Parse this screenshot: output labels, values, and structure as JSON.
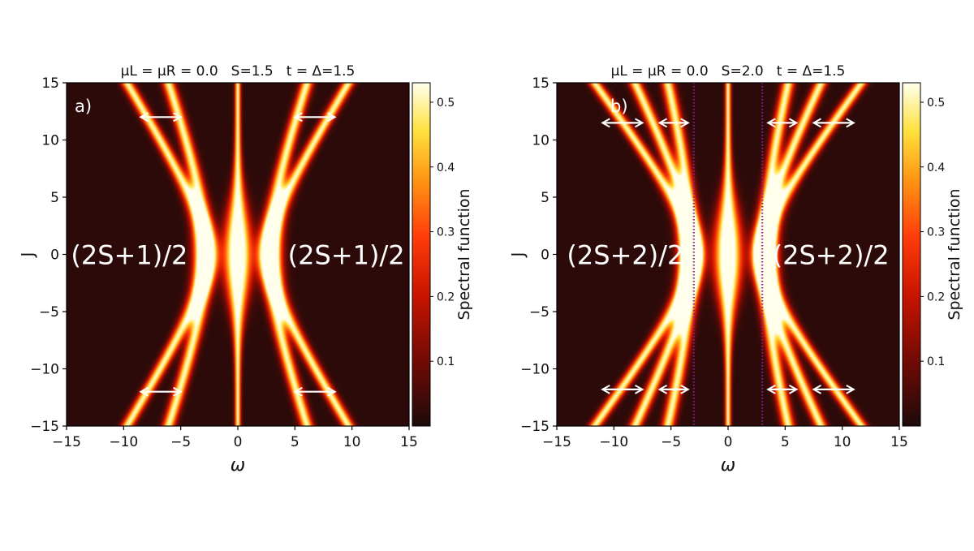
{
  "colors": {
    "background": "#ffffff",
    "heatmap_low": "#1e0a0a",
    "heatmap_high": "#ffffe8",
    "annotation": "#ffffff",
    "dotted_line": "#8a1f8f"
  },
  "colorbar": {
    "label": "Spectral function",
    "range": [
      0.0,
      0.53
    ],
    "ticks": [
      0.1,
      0.2,
      0.3,
      0.4,
      0.5
    ],
    "tick_labels": [
      "0.1",
      "0.2",
      "0.3",
      "0.4",
      "0.5"
    ]
  },
  "chart_data": [
    {
      "type": "heatmap",
      "panel": "a)",
      "title_parts": [
        "μL = μR = 0.0",
        "S=1.5",
        "t = Δ=1.5"
      ],
      "xlabel": "ω",
      "ylabel": "J",
      "xlim": [
        -15,
        15
      ],
      "ylim": [
        -15,
        15
      ],
      "xticks": [
        -15,
        -10,
        -5,
        0,
        5,
        10,
        15
      ],
      "yticks": [
        -15,
        -10,
        -5,
        0,
        5,
        10,
        15
      ],
      "xtick_labels": [
        "−15",
        "−10",
        "−5",
        "0",
        "5",
        "10",
        "15"
      ],
      "ytick_labels": [
        "−15",
        "−10",
        "−5",
        "0",
        "5",
        "10",
        "15"
      ],
      "region_labels": [
        {
          "text": "(2S+1)/2",
          "omega": -9.5,
          "J": 0
        },
        {
          "text": "(2S+1)/2",
          "omega": 9.5,
          "J": 0
        }
      ],
      "arrows": [
        {
          "omega_from": -8.5,
          "omega_to": -5.0,
          "J": 12
        },
        {
          "omega_from": 5.0,
          "omega_to": 8.5,
          "J": 12
        },
        {
          "omega_from": -8.5,
          "omega_to": -5.0,
          "J": -12
        },
        {
          "omega_from": 5.0,
          "omega_to": 8.5,
          "J": -12
        }
      ],
      "dotted_lines_omega": [],
      "bands": [
        {
          "omega_at_J0": 0,
          "slope": 0,
          "amplitude": 0.5
        },
        {
          "omega_at_J0": -2.8,
          "slope": -0.36,
          "amplitude": 0.5
        },
        {
          "omega_at_J0": 2.8,
          "slope": 0.36,
          "amplitude": 0.5
        },
        {
          "omega_at_J0": -2.8,
          "slope": -0.62,
          "amplitude": 0.5
        },
        {
          "omega_at_J0": 2.8,
          "slope": 0.62,
          "amplitude": 0.5
        }
      ]
    },
    {
      "type": "heatmap",
      "panel": "b)",
      "title_parts": [
        "μL = μR = 0.0",
        "S=2.0",
        "t = Δ=1.5"
      ],
      "xlabel": "ω",
      "ylabel": "J",
      "xlim": [
        -15,
        15
      ],
      "ylim": [
        -15,
        15
      ],
      "xticks": [
        -15,
        -10,
        -5,
        0,
        5,
        10,
        15
      ],
      "yticks": [
        -15,
        -10,
        -5,
        0,
        5,
        10,
        15
      ],
      "xtick_labels": [
        "−15",
        "−10",
        "−5",
        "0",
        "5",
        "10",
        "15"
      ],
      "ytick_labels": [
        "−15",
        "−10",
        "−5",
        "0",
        "5",
        "10",
        "15"
      ],
      "region_labels": [
        {
          "text": "(2S+2)/2",
          "omega": -9.0,
          "J": 0
        },
        {
          "text": "(2S+2)/2",
          "omega": 9.0,
          "J": 0
        }
      ],
      "arrows": [
        {
          "omega_from": -11.0,
          "omega_to": -7.5,
          "J": 11.5
        },
        {
          "omega_from": -6.0,
          "omega_to": -3.5,
          "J": 11.5
        },
        {
          "omega_from": 3.5,
          "omega_to": 6.0,
          "J": 11.5
        },
        {
          "omega_from": 7.5,
          "omega_to": 11.0,
          "J": 11.5
        },
        {
          "omega_from": -11.0,
          "omega_to": -7.5,
          "J": -11.8
        },
        {
          "omega_from": -6.0,
          "omega_to": -3.5,
          "J": -11.8
        },
        {
          "omega_from": 3.5,
          "omega_to": 6.0,
          "J": -11.8
        },
        {
          "omega_from": 7.5,
          "omega_to": 11.0,
          "J": -11.8
        }
      ],
      "dotted_lines_omega": [
        -3.0,
        3.0
      ],
      "bands": [
        {
          "omega_at_J0": 0,
          "slope": 0,
          "amplitude": 0.5
        },
        {
          "omega_at_J0": -3.2,
          "slope": -0.28,
          "amplitude": 0.5
        },
        {
          "omega_at_J0": 3.2,
          "slope": 0.28,
          "amplitude": 0.5
        },
        {
          "omega_at_J0": -3.2,
          "slope": -0.5,
          "amplitude": 0.5
        },
        {
          "omega_at_J0": 3.2,
          "slope": 0.5,
          "amplitude": 0.5
        },
        {
          "omega_at_J0": -3.2,
          "slope": -0.75,
          "amplitude": 0.5
        },
        {
          "omega_at_J0": 3.2,
          "slope": 0.75,
          "amplitude": 0.5
        }
      ]
    }
  ]
}
